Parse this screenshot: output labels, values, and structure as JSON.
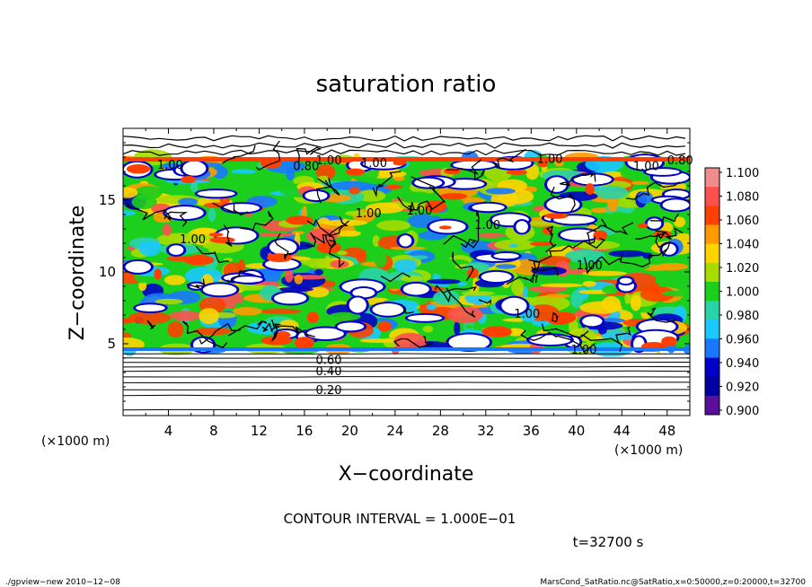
{
  "chart_data": {
    "type": "heatmap",
    "title": "saturation ratio",
    "xlabel": "X−coordinate",
    "ylabel": "Z−coordinate",
    "x_unit": "(×1000 m)",
    "y_unit": "(×1000 m)",
    "xlim": [
      0,
      50
    ],
    "ylim": [
      0,
      20
    ],
    "x_ticks": [
      4,
      8,
      12,
      16,
      20,
      24,
      28,
      32,
      36,
      40,
      44,
      48
    ],
    "y_ticks": [
      5,
      10,
      15
    ],
    "colorbar": {
      "levels": [
        "1.100",
        "1.080",
        "1.060",
        "1.040",
        "1.020",
        "1.000",
        "0.980",
        "0.960",
        "0.940",
        "0.920",
        "0.900"
      ],
      "colors": [
        "#f08c8c",
        "#ff5050",
        "#ff4000",
        "#ff9a00",
        "#ffd400",
        "#a6dc00",
        "#1ccf1c",
        "#29d3a6",
        "#19c8ff",
        "#1a78ff",
        "#0000c8",
        "#0000a0",
        "#5a0f9a"
      ]
    },
    "contour_interval": "CONTOUR INTERVAL = 1.000E−01",
    "contour_labels": [
      "1.00",
      "0.80",
      "1.00",
      "1.00",
      "1.00",
      "1.00",
      "0.80",
      "1.00",
      "1.00",
      "1.00",
      "1.00",
      "1.00",
      "1.00",
      "1.00",
      "0.60",
      "0.40",
      "0.20"
    ],
    "time_label": "t=32700 s",
    "footer_left": "./gpview−new  2010−12−08",
    "footer_right": "MarsCond_SatRatio.nc@SatRatio,x=0:50000,z=0:20000,t=32700"
  }
}
